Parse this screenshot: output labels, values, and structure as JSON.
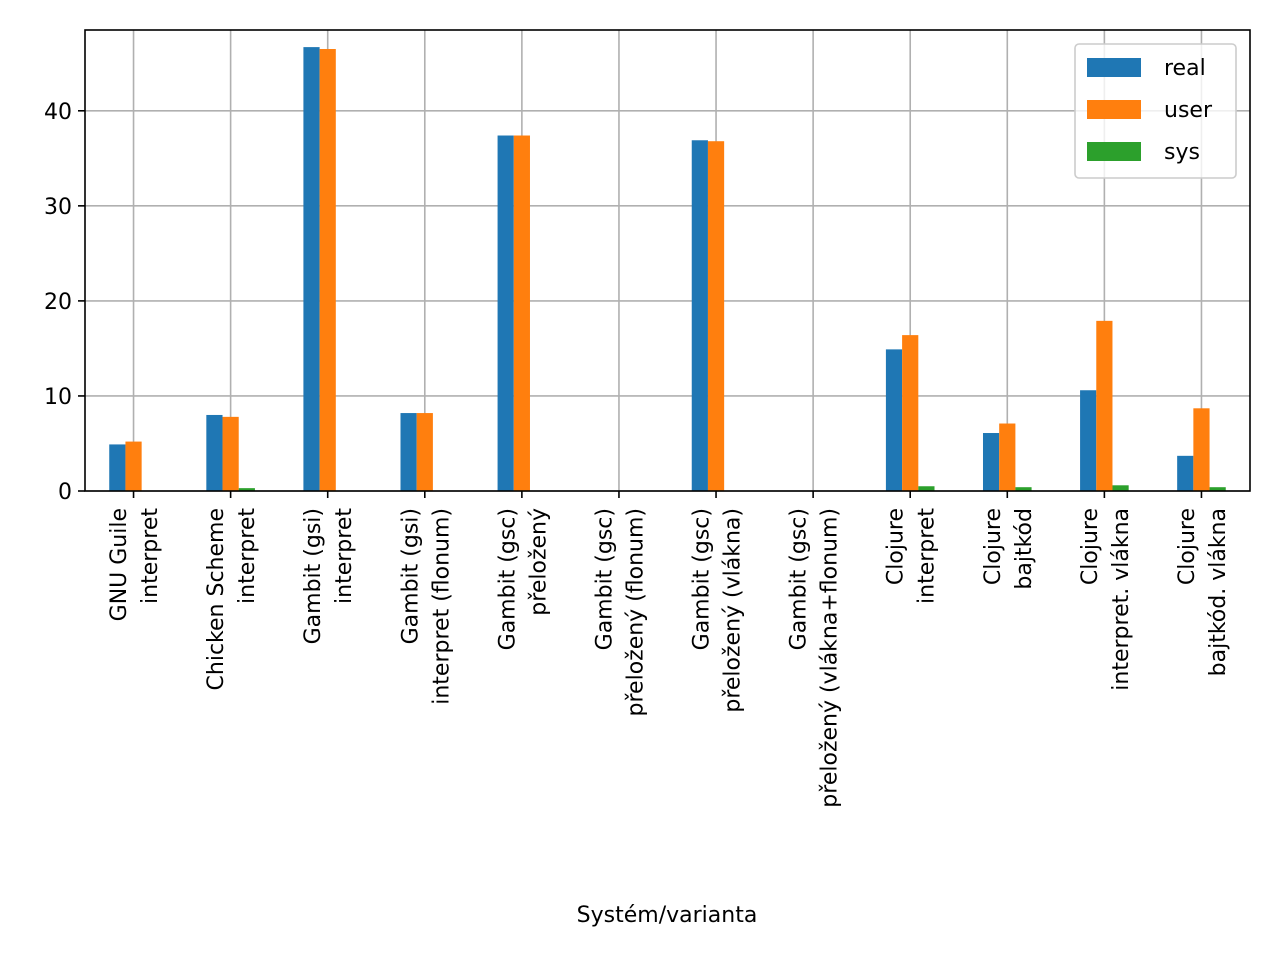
{
  "chart_data": {
    "type": "bar",
    "xlabel": "Systém/varianta",
    "ylabel": "",
    "ylim": [
      0,
      48.5
    ],
    "yticks": [
      0,
      10,
      20,
      30,
      40
    ],
    "grid": true,
    "legend_position": "top-right",
    "categories": [
      [
        "GNU Guile",
        "interpret"
      ],
      [
        "Chicken Scheme",
        "interpret"
      ],
      [
        "Gambit (gsi)",
        "interpret"
      ],
      [
        "Gambit (gsi)",
        "interpret (flonum)"
      ],
      [
        "Gambit (gsc)",
        "přeložený"
      ],
      [
        "Gambit (gsc)",
        "přeložený (flonum)"
      ],
      [
        "Gambit (gsc)",
        "přeložený (vlákna)"
      ],
      [
        "Gambit (gsc)",
        "přeložený (vlákna+flonum)"
      ],
      [
        "Clojure",
        "interpret"
      ],
      [
        "Clojure",
        "bajtkód"
      ],
      [
        "Clojure",
        "interpret. vlákna"
      ],
      [
        "Clojure",
        "bajtkód. vlákna"
      ]
    ],
    "series": [
      {
        "name": "real",
        "color": "#1f77b4",
        "values": [
          4.9,
          8.0,
          46.7,
          8.2,
          37.4,
          0,
          36.9,
          0,
          14.9,
          6.1,
          10.6,
          3.7
        ]
      },
      {
        "name": "user",
        "color": "#ff7f0e",
        "values": [
          5.2,
          7.8,
          46.5,
          8.2,
          37.4,
          0,
          36.8,
          0,
          16.4,
          7.1,
          17.9,
          8.7
        ]
      },
      {
        "name": "sys",
        "color": "#2ca02c",
        "values": [
          0.0,
          0.3,
          0.0,
          0.0,
          0.0,
          0,
          0.0,
          0,
          0.5,
          0.4,
          0.6,
          0.4
        ]
      }
    ]
  }
}
